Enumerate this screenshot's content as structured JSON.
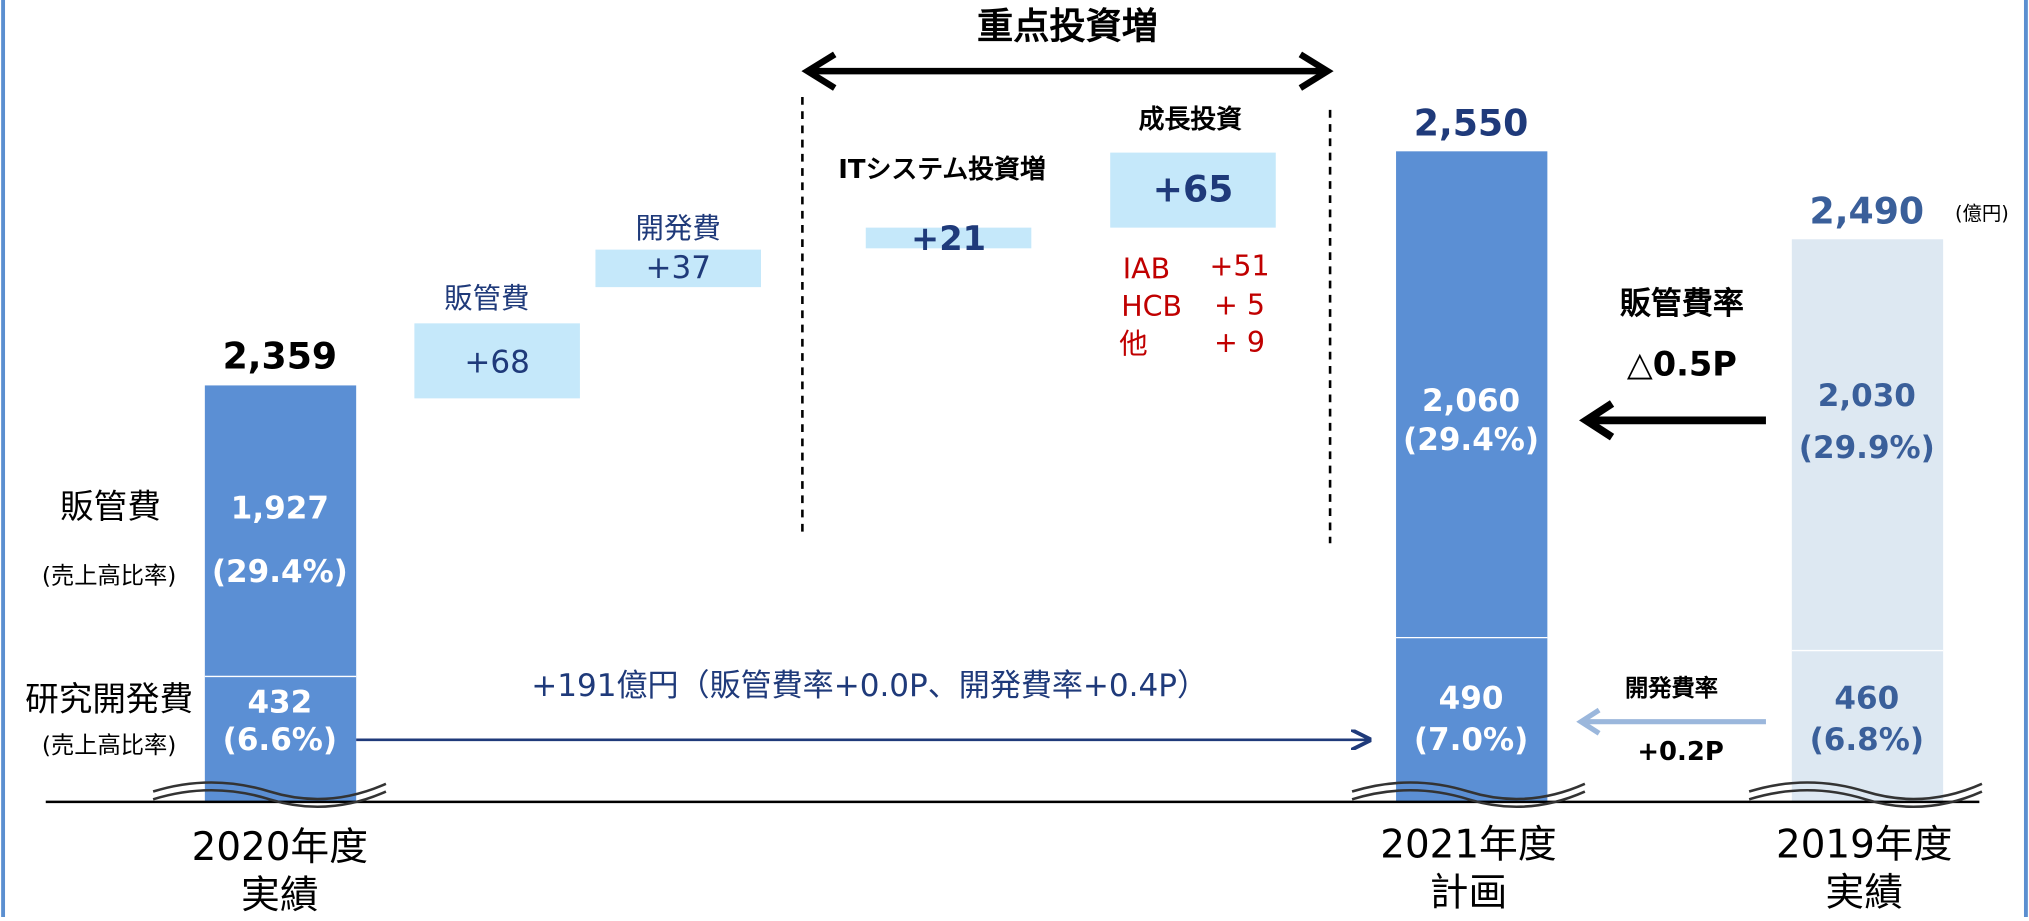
{
  "title": "重点投資増",
  "left_labels": {
    "sga": "販管費",
    "sga_ratio": "(売上高比率)",
    "rd": "研究開発費",
    "rd_ratio": "(売上高比率)"
  },
  "bars": [
    {
      "year": [
        "2020年度",
        "実績"
      ],
      "total": "2,359",
      "sga": "1,927",
      "sga_ratio": "(29.4%)",
      "rd": "432",
      "rd_ratio": "(6.6%)"
    },
    {
      "year": [
        "2021年度",
        "計画"
      ],
      "total": "2,550",
      "sga": "2,060",
      "sga_ratio": "(29.4%)",
      "rd": "490",
      "rd_ratio": "(7.0%)"
    },
    {
      "year": [
        "2019年度",
        "実績"
      ],
      "total": "2,490",
      "unit": "(億円)",
      "sga": "2,030",
      "sga_ratio": "(29.9%)",
      "rd": "460",
      "rd_ratio": "(6.8%)"
    }
  ],
  "steps": [
    {
      "label": "販管費",
      "value": "+68"
    },
    {
      "label": "開発費",
      "value": "+37"
    },
    {
      "label": "ITシステム投資増",
      "value": "+21"
    },
    {
      "label": "成長投資",
      "value": "+65"
    }
  ],
  "breakdown": [
    [
      "IAB",
      "+51"
    ],
    [
      "HCB",
      "+ 5"
    ],
    [
      "他",
      "+ 9"
    ]
  ],
  "total_change": "+191億円（販管費率+0.0P、開発費率+0.4P）",
  "sga_rate": {
    "label": "販管費率",
    "value": "△0.5P"
  },
  "rd_rate": {
    "label": "開発費率",
    "value": "+0.2P"
  }
}
